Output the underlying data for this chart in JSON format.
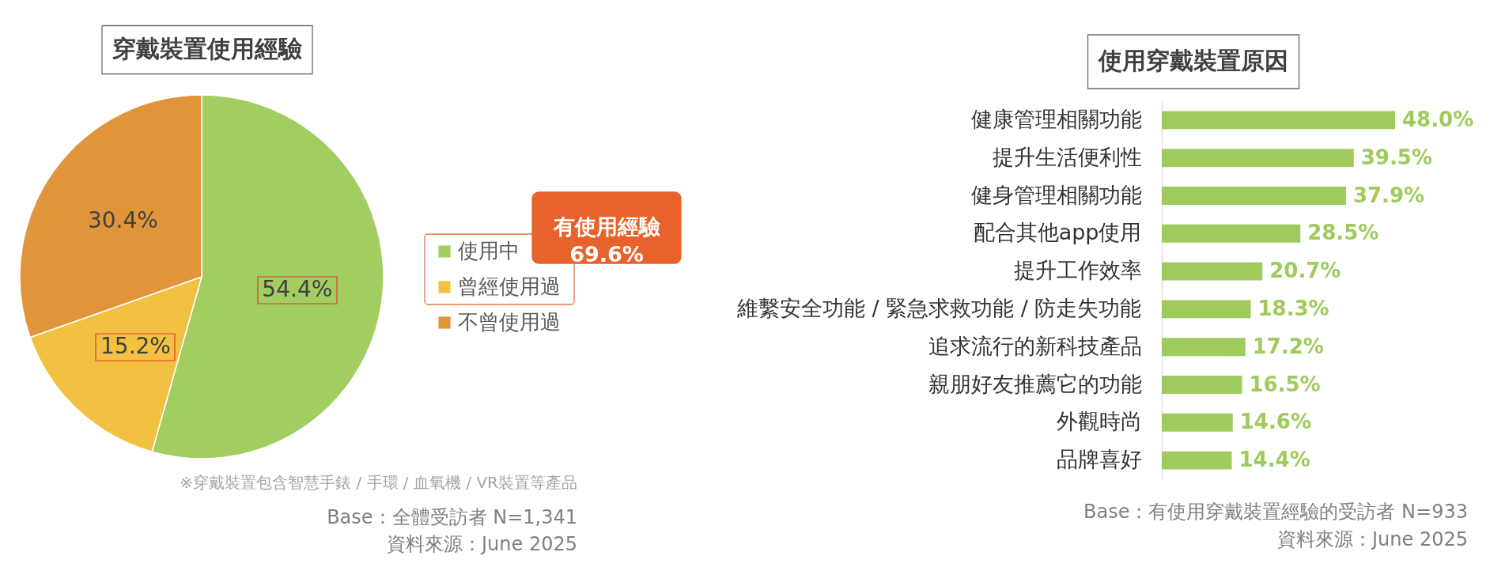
{
  "chart_data": [
    {
      "type": "pie",
      "title": "穿戴裝置使用經驗",
      "categories": [
        "使用中",
        "曾經使用過",
        "不曾使用過"
      ],
      "values": [
        54.4,
        15.2,
        30.4
      ],
      "colors": [
        "#a2cd60",
        "#f3c142",
        "#e0953a"
      ],
      "value_labels": [
        "54.4%",
        "15.2%",
        "30.4%"
      ],
      "legend": "right",
      "annotations": [
        "有使用經驗\n69.6%",
        "※穿戴裝置包含智慧手錶 / 手環 / 血氧機 / VR裝置等產品",
        "Base：全體受訪者 N=1,341",
        "資料來源：June 2025"
      ]
    },
    {
      "type": "bar",
      "orientation": "horizontal",
      "title": "使用穿戴裝置原因",
      "categories": [
        "健康管理相關功能",
        "提升生活便利性",
        "健身管理相關功能",
        "配合其他app使用",
        "提升工作效率",
        "維繫安全功能 / 緊急求救功能 / 防走失功能",
        "追求流行的新科技產品",
        "親朋好友推薦它的功能",
        "外觀時尚",
        "品牌喜好"
      ],
      "values": [
        48.0,
        39.5,
        37.9,
        28.5,
        20.7,
        18.3,
        17.2,
        16.5,
        14.6,
        14.4
      ],
      "color": "#9fcb5d",
      "value_labels": [
        "48.0%",
        "39.5%",
        "37.9%",
        "28.5%",
        "20.7%",
        "18.3%",
        "17.2%",
        "16.5%",
        "14.6%",
        "14.4%"
      ],
      "tick_labels": "y",
      "annotations": [
        "Base：有使用穿戴裝置經驗的受訪者 N=933",
        "資料來源：June 2025"
      ]
    }
  ]
}
